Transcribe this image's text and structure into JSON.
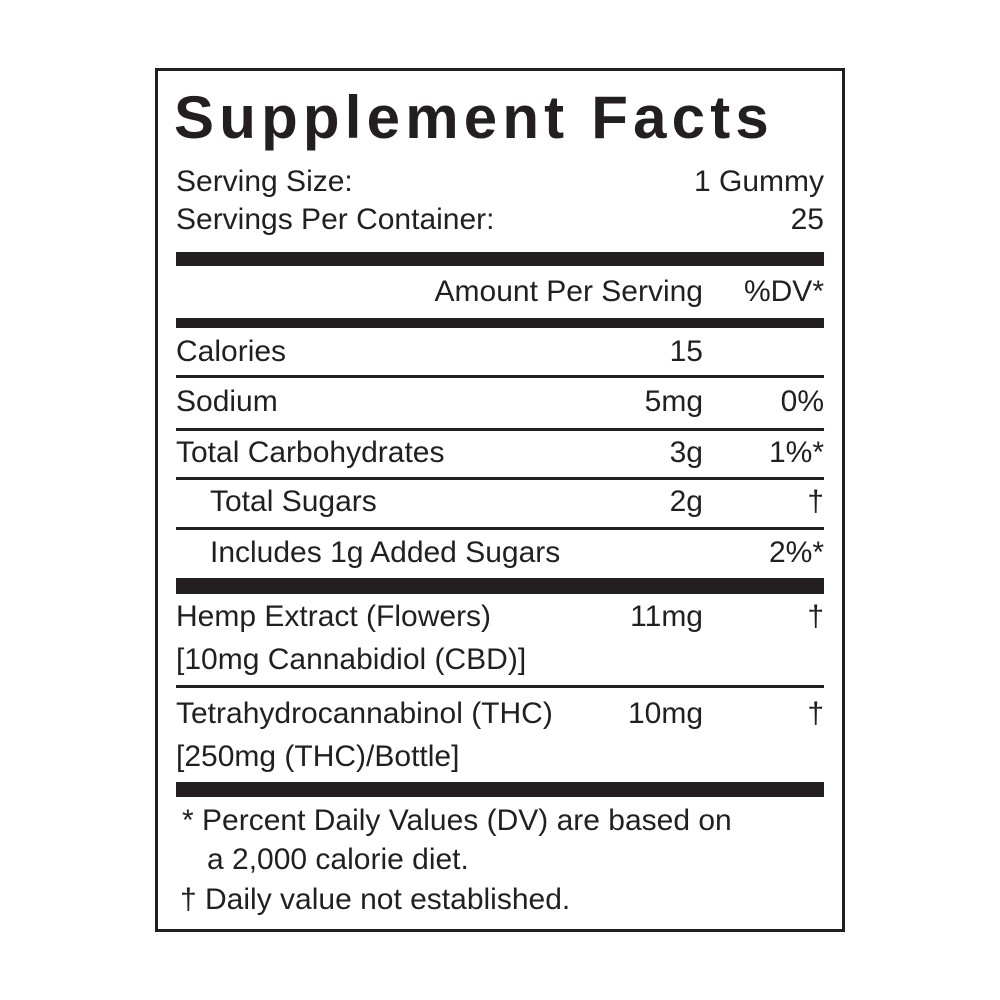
{
  "title": "Supplement Facts",
  "serving_size": {
    "label": "Serving Size:",
    "value": "1 Gummy"
  },
  "servings_per_container": {
    "label": "Servings Per Container:",
    "value": "25"
  },
  "header": {
    "amount": "Amount Per Serving",
    "dv": "%DV*"
  },
  "rows": [
    {
      "name": "Calories",
      "amount": "15",
      "dv": ""
    },
    {
      "name": "Sodium",
      "amount": "5mg",
      "dv": "0%"
    },
    {
      "name": "Total Carbohydrates",
      "amount": "3g",
      "dv": "1%*"
    },
    {
      "name": "Total Sugars",
      "amount": "2g",
      "dv": "†"
    },
    {
      "name": "Includes 1g Added Sugars",
      "amount": "",
      "dv": "2%*"
    },
    {
      "name": "Hemp Extract (Flowers)",
      "sub": "[10mg Cannabidiol (CBD)]",
      "amount": "11mg",
      "dv": "†"
    },
    {
      "name": "Tetrahydrocannabinol (THC)",
      "sub": "[250mg (THC)/Bottle]",
      "amount": "10mg",
      "dv": "†"
    }
  ],
  "footnotes": {
    "line1": "*  Percent Daily Values (DV) are based on",
    "line2": "a 2,000 calorie diet.",
    "line3": "† Daily value not established."
  }
}
